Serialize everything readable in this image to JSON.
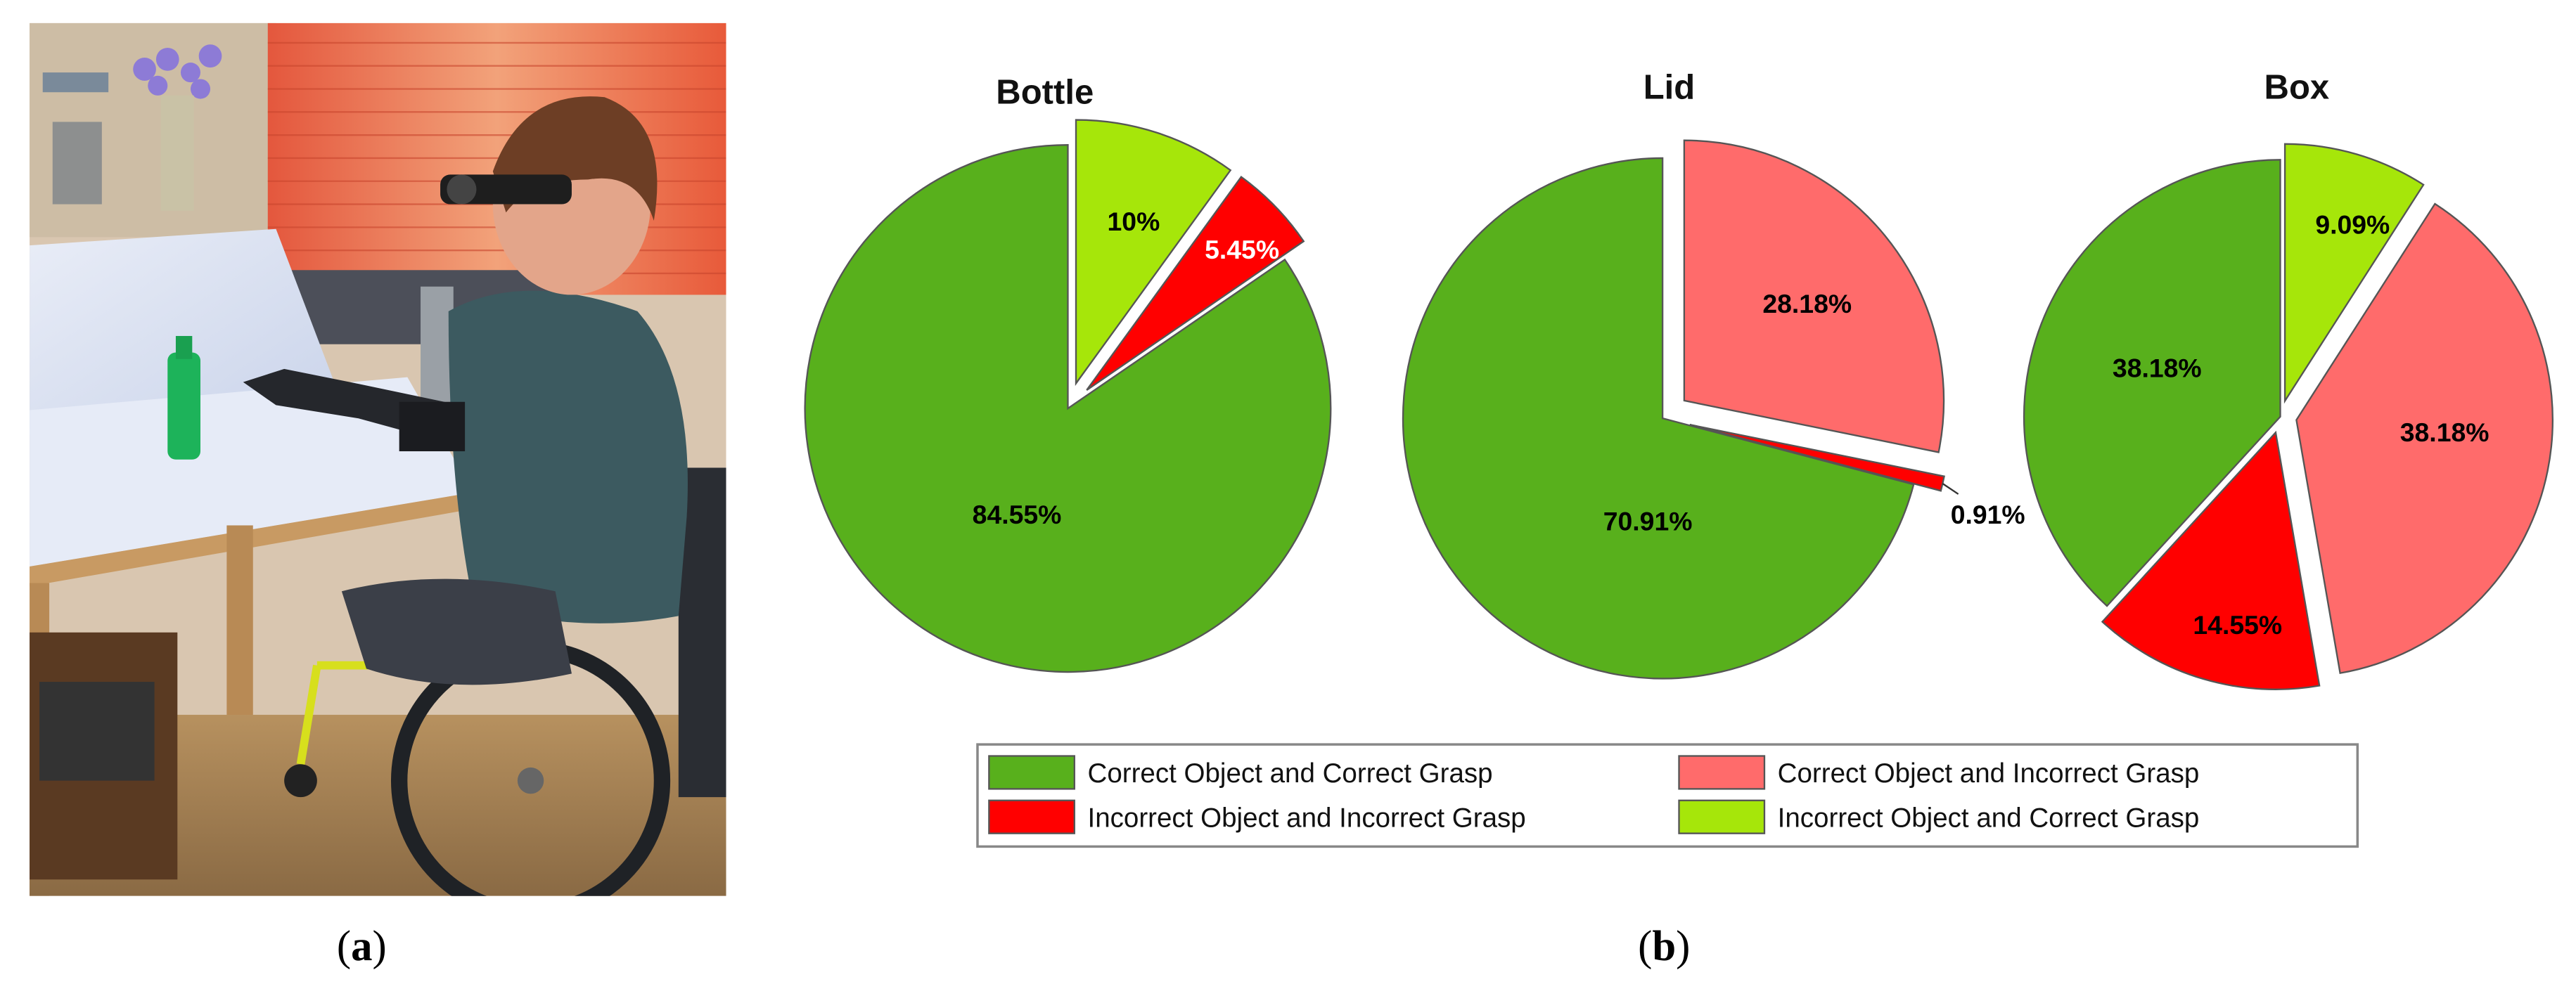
{
  "panel_a": {
    "label_open": "(",
    "label_letter": "a",
    "label_close": ")"
  },
  "panel_b": {
    "label_open": "(",
    "label_letter": "b",
    "label_close": ")"
  },
  "legend": [
    {
      "label": "Correct Object and Correct Grasp",
      "color": "#58B01C"
    },
    {
      "label": "Correct Object and Incorrect Grasp",
      "color": "#FF6B6B"
    },
    {
      "label": "Incorrect Object and Incorrect Grasp",
      "color": "#FF0000"
    },
    {
      "label": "Incorrect Object and Correct Grasp",
      "color": "#A6E60A"
    }
  ],
  "chart_data": [
    {
      "type": "pie",
      "title": "Bottle",
      "slices": [
        {
          "category": "Incorrect Object and Correct Grasp",
          "value": 10,
          "label": "10%",
          "exploded": true
        },
        {
          "category": "Incorrect Object and Incorrect Grasp",
          "value": 5.45,
          "label": "5.45%",
          "exploded": true
        },
        {
          "category": "Correct Object and Correct Grasp",
          "value": 84.55,
          "label": "84.55%",
          "exploded": false
        }
      ]
    },
    {
      "type": "pie",
      "title": "Lid",
      "slices": [
        {
          "category": "Correct Object and Incorrect Grasp",
          "value": 28.18,
          "label": "28.18%",
          "exploded": true
        },
        {
          "category": "Incorrect Object and Incorrect Grasp",
          "value": 0.91,
          "label": "0.91%",
          "exploded": true
        },
        {
          "category": "Correct Object and Correct Grasp",
          "value": 70.91,
          "label": "70.91%",
          "exploded": false
        }
      ]
    },
    {
      "type": "pie",
      "title": "Box",
      "slices": [
        {
          "category": "Incorrect Object and Correct Grasp",
          "value": 9.09,
          "label": "9.09%",
          "exploded": true
        },
        {
          "category": "Correct Object and Incorrect Grasp",
          "value": 38.18,
          "label": "38.18%",
          "exploded": true
        },
        {
          "category": "Incorrect Object and Incorrect Grasp",
          "value": 14.55,
          "label": "14.55%",
          "exploded": true
        },
        {
          "category": "Correct Object and Correct Grasp",
          "value": 38.18,
          "label": "38.18%",
          "exploded": false
        }
      ]
    }
  ]
}
